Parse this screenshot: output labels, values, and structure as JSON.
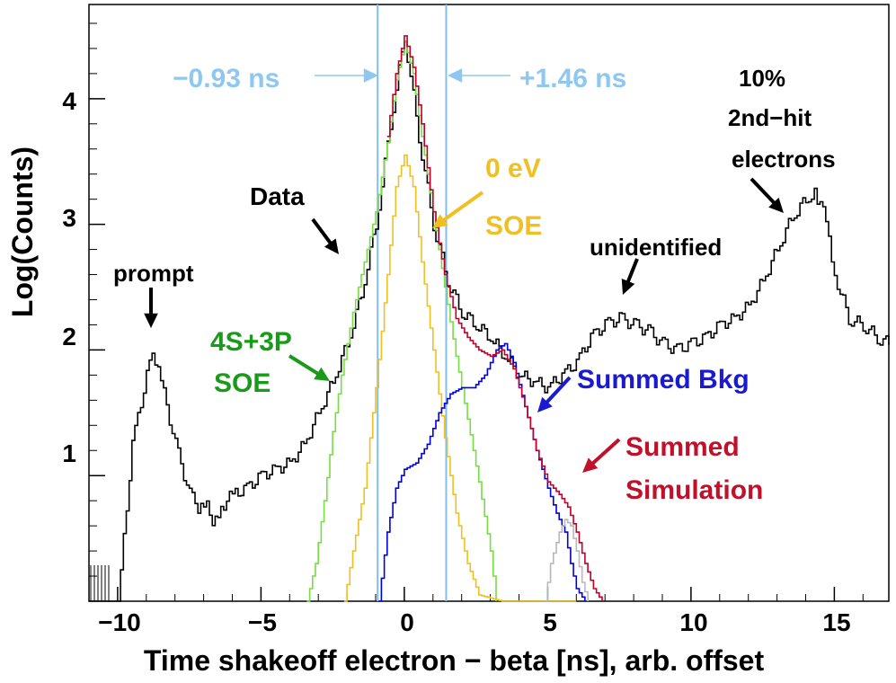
{
  "chart_data": {
    "type": "line",
    "step": true,
    "title": "",
    "xlabel": "Time shakeoff electron − beta [ns], arb. offset",
    "ylabel": "Log(Counts)",
    "xlim": [
      -11.0,
      16.9
    ],
    "ylim": [
      0.0,
      4.75
    ],
    "x_ticks": [
      -10,
      -5,
      0,
      5,
      10,
      15
    ],
    "x_tick_labels": [
      "−10",
      "−5",
      "0",
      "5",
      "10",
      "15"
    ],
    "y_ticks": [
      1,
      2,
      3,
      4
    ],
    "y_tick_labels": [
      "1",
      "2",
      "3",
      "4"
    ],
    "grid": false,
    "series": [
      {
        "name": "Data",
        "color": "#000000",
        "x": [
          -11.0,
          -10.0,
          -9.5,
          -9.0,
          -8.8,
          -8.5,
          -8.0,
          -7.5,
          -7.2,
          -7.0,
          -6.7,
          -6.4,
          -6.0,
          -5.5,
          -5.0,
          -4.5,
          -4.0,
          -3.5,
          -3.0,
          -2.5,
          -2.0,
          -1.5,
          -1.0,
          -0.5,
          0.0,
          0.5,
          1.0,
          1.5,
          2.0,
          2.5,
          3.0,
          3.5,
          4.0,
          4.5,
          5.0,
          5.5,
          6.0,
          6.5,
          7.0,
          7.5,
          8.0,
          8.5,
          9.0,
          9.5,
          10.0,
          10.5,
          11.0,
          11.5,
          12.0,
          12.5,
          13.0,
          13.5,
          14.0,
          14.3,
          14.7,
          15.0,
          15.5,
          16.0,
          16.5,
          16.9
        ],
        "y": [
          0.0,
          0.0,
          1.25,
          1.8,
          1.95,
          1.75,
          1.25,
          0.85,
          0.75,
          0.8,
          0.65,
          0.75,
          0.85,
          0.9,
          1.0,
          1.05,
          1.1,
          1.25,
          1.5,
          1.75,
          2.05,
          2.45,
          3.0,
          3.8,
          4.5,
          3.7,
          3.0,
          2.55,
          2.3,
          2.2,
          2.1,
          1.95,
          1.8,
          1.75,
          1.7,
          1.8,
          1.9,
          2.1,
          2.2,
          2.25,
          2.2,
          2.15,
          2.05,
          2.0,
          2.05,
          2.1,
          2.2,
          2.25,
          2.35,
          2.55,
          2.8,
          3.05,
          3.2,
          3.25,
          3.05,
          2.6,
          2.25,
          2.2,
          2.1,
          2.05
        ]
      },
      {
        "name": "4S+3P SOE",
        "color": "#77dd44",
        "x": [
          -3.4,
          -3.1,
          -2.8,
          -2.5,
          -2.2,
          -1.8,
          -1.4,
          -1.0,
          -0.6,
          -0.3,
          0.0,
          0.3,
          0.6,
          1.0,
          1.4,
          1.8,
          2.2,
          2.6,
          3.0,
          3.2
        ],
        "y": [
          0.0,
          0.3,
          0.8,
          1.35,
          1.8,
          2.3,
          2.7,
          3.1,
          3.65,
          4.15,
          4.45,
          4.2,
          3.7,
          3.1,
          2.5,
          1.95,
          1.45,
          0.95,
          0.4,
          0.0
        ]
      },
      {
        "name": "0 eV SOE",
        "color": "#f0c020",
        "x": [
          -2.1,
          -1.8,
          -1.4,
          -1.0,
          -0.6,
          -0.3,
          0.0,
          0.3,
          0.6,
          1.0,
          1.4,
          1.8,
          2.2,
          2.6,
          3.4,
          6.0
        ],
        "y": [
          0.0,
          0.4,
          0.9,
          1.7,
          2.6,
          3.3,
          3.55,
          3.3,
          2.7,
          2.0,
          1.3,
          0.7,
          0.3,
          0.05,
          0.0,
          0.0
        ]
      },
      {
        "name": "Summed Bkg",
        "color": "#0000dd",
        "x": [
          -0.9,
          -0.6,
          -0.3,
          0.0,
          0.4,
          0.8,
          1.2,
          1.6,
          2.0,
          2.4,
          2.8,
          3.2,
          3.5,
          3.8,
          4.2,
          4.6,
          5.0,
          5.3,
          5.6,
          5.8,
          6.0,
          6.3
        ],
        "y": [
          0.0,
          0.55,
          0.9,
          1.05,
          1.1,
          1.25,
          1.5,
          1.65,
          1.7,
          1.7,
          1.8,
          2.0,
          2.05,
          1.9,
          1.55,
          1.2,
          0.9,
          0.7,
          0.55,
          0.3,
          0.1,
          0.0
        ]
      },
      {
        "name": "Summed Simulation",
        "color": "#c0002a",
        "x": [
          -0.6,
          -0.3,
          0.0,
          0.3,
          0.6,
          1.0,
          1.4,
          1.8,
          2.2,
          2.6,
          3.0,
          3.4,
          3.8,
          4.2,
          4.6,
          5.0,
          5.4,
          5.7,
          6.0,
          6.3,
          6.6,
          6.9
        ],
        "y": [
          3.7,
          4.2,
          4.5,
          4.25,
          3.8,
          3.1,
          2.6,
          2.25,
          2.1,
          2.0,
          1.95,
          2.0,
          1.85,
          1.55,
          1.2,
          0.95,
          0.85,
          0.75,
          0.55,
          0.3,
          0.1,
          0.0
        ]
      },
      {
        "name": "",
        "color": "#b8b8b8",
        "x": [
          4.9,
          5.1,
          5.4,
          5.6,
          5.8,
          6.0,
          6.2,
          6.4
        ],
        "y": [
          0.0,
          0.3,
          0.55,
          0.65,
          0.6,
          0.4,
          0.15,
          0.0
        ]
      }
    ],
    "vlines": [
      {
        "x": -0.93,
        "color": "#7fbfee"
      },
      {
        "x": 1.46,
        "color": "#7fbfee"
      }
    ],
    "annotations": [
      {
        "id": "minus",
        "text": "−0.93 ns",
        "color": "#8ec8f0"
      },
      {
        "id": "plus",
        "text": "+1.46 ns",
        "color": "#8ec8f0"
      },
      {
        "id": "data",
        "text": "Data",
        "color": "#000000"
      },
      {
        "id": "prompt",
        "text": "prompt",
        "color": "#000000"
      },
      {
        "id": "soe4s_1",
        "text": "4S+3P",
        "color": "#1a9a1a"
      },
      {
        "id": "soe4s_2",
        "text": "SOE",
        "color": "#1a9a1a"
      },
      {
        "id": "zero_1",
        "text": "0 eV",
        "color": "#f0c020"
      },
      {
        "id": "zero_2",
        "text": "SOE",
        "color": "#f0c020"
      },
      {
        "id": "unid",
        "text": "unidentified",
        "color": "#000000"
      },
      {
        "id": "pct_1",
        "text": "10%",
        "color": "#000000"
      },
      {
        "id": "pct_2",
        "text": "2nd−hit",
        "color": "#000000"
      },
      {
        "id": "pct_3",
        "text": "electrons",
        "color": "#000000"
      },
      {
        "id": "bkg",
        "text": "Summed Bkg",
        "color": "#1a1ad0"
      },
      {
        "id": "sim_1",
        "text": "Summed",
        "color": "#c0102a"
      },
      {
        "id": "sim_2",
        "text": "Simulation",
        "color": "#c0102a"
      }
    ]
  }
}
